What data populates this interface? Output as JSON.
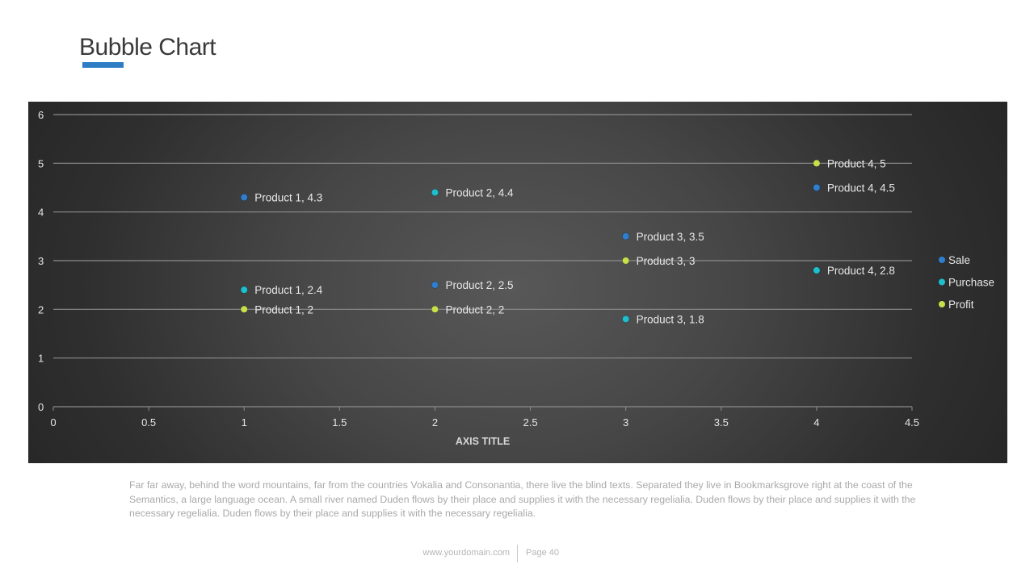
{
  "slide": {
    "title": "Bubble Chart",
    "accent_color": "#2e7cc4",
    "description": "Far far away, behind the word mountains, far from the countries Vokalia and Consonantia, there live the blind texts. Separated they live in Bookmarksgrove right at the coast of the Semantics, a large language ocean. A small river named Duden flows by their place and supplies it with the necessary regelialia. Duden flows by their place and supplies it with the necessary regelialia. Duden flows by their place and supplies it with the necessary regelialia.",
    "footer": {
      "domain": "www.yourdomain.com",
      "page": "Page 40"
    }
  },
  "chart_data": {
    "type": "scatter",
    "title": "Bubble Chart",
    "xlabel": "AXIS TITLE",
    "ylabel": "",
    "xlim": [
      0,
      4.5
    ],
    "ylim": [
      0,
      6
    ],
    "x_ticks": [
      "0",
      "0.5",
      "1",
      "1.5",
      "2",
      "2.5",
      "3",
      "3.5",
      "4",
      "4.5"
    ],
    "y_ticks": [
      "0",
      "1",
      "2",
      "3",
      "4",
      "5",
      "6"
    ],
    "grid": true,
    "legend_position": "right",
    "series": [
      {
        "name": "Sale",
        "color": "#2f7fd0",
        "points": [
          {
            "x": 1,
            "y": 4.3,
            "label": "Product  1, 4.3"
          },
          {
            "x": 2,
            "y": 2.5,
            "label": "Product  2, 2.5"
          },
          {
            "x": 3,
            "y": 3.5,
            "label": "Product  3, 3.5"
          },
          {
            "x": 4,
            "y": 4.5,
            "label": "Product  4, 4.5"
          }
        ]
      },
      {
        "name": "Purchase",
        "color": "#1ec0cf",
        "points": [
          {
            "x": 1,
            "y": 2.4,
            "label": "Product  1, 2.4"
          },
          {
            "x": 2,
            "y": 4.4,
            "label": "Product  2, 4.4"
          },
          {
            "x": 3,
            "y": 1.8,
            "label": "Product  3, 1.8"
          },
          {
            "x": 4,
            "y": 2.8,
            "label": "Product  4, 2.8"
          }
        ]
      },
      {
        "name": "Profit",
        "color": "#c8e04a",
        "points": [
          {
            "x": 1,
            "y": 2,
            "label": "Product  1, 2"
          },
          {
            "x": 2,
            "y": 2,
            "label": "Product  2, 2"
          },
          {
            "x": 3,
            "y": 3,
            "label": "Product  3, 3"
          },
          {
            "x": 4,
            "y": 5,
            "label": "Product  4, 5"
          }
        ]
      }
    ]
  }
}
